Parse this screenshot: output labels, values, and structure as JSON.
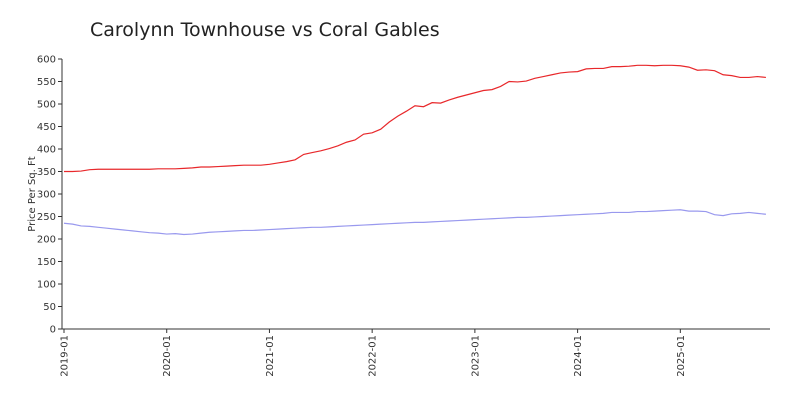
{
  "chart_data": {
    "type": "line",
    "title": "Carolynn Townhouse vs Coral Gables",
    "ylabel": "Price Per Sq. Ft",
    "x": [
      "2019-01",
      "2019-02",
      "2019-03",
      "2019-04",
      "2019-05",
      "2019-06",
      "2019-07",
      "2019-08",
      "2019-09",
      "2019-10",
      "2019-11",
      "2019-12",
      "2020-01",
      "2020-02",
      "2020-03",
      "2020-04",
      "2020-05",
      "2020-06",
      "2020-07",
      "2020-08",
      "2020-09",
      "2020-10",
      "2020-11",
      "2020-12",
      "2021-01",
      "2021-02",
      "2021-03",
      "2021-04",
      "2021-05",
      "2021-06",
      "2021-07",
      "2021-08",
      "2021-09",
      "2021-10",
      "2021-11",
      "2021-12",
      "2022-01",
      "2022-02",
      "2022-03",
      "2022-04",
      "2022-05",
      "2022-06",
      "2022-07",
      "2022-08",
      "2022-09",
      "2022-10",
      "2022-11",
      "2022-12",
      "2023-01",
      "2023-02",
      "2023-03",
      "2023-04",
      "2023-05",
      "2023-06",
      "2023-07",
      "2023-08",
      "2023-09",
      "2023-10",
      "2023-11",
      "2023-12",
      "2024-01",
      "2024-02",
      "2024-03",
      "2024-04",
      "2024-05",
      "2024-06",
      "2024-07",
      "2024-08",
      "2024-09",
      "2024-10",
      "2024-11",
      "2024-12",
      "2025-01",
      "2025-02",
      "2025-03",
      "2025-04",
      "2025-05",
      "2025-06",
      "2025-07",
      "2025-08",
      "2025-09",
      "2025-10",
      "2025-11"
    ],
    "series": [
      {
        "color": "#e8282b",
        "values": [
          350,
          350,
          351,
          354,
          355,
          355,
          355,
          355,
          355,
          355,
          355,
          356,
          356,
          356,
          357,
          358,
          360,
          360,
          361,
          362,
          363,
          364,
          364,
          364,
          366,
          369,
          372,
          376,
          388,
          392,
          396,
          401,
          407,
          415,
          420,
          433,
          436,
          444,
          460,
          473,
          484,
          496,
          494,
          503,
          502,
          509,
          515,
          520,
          525,
          530,
          532,
          539,
          550,
          549,
          551,
          557,
          561,
          565,
          569,
          571,
          572,
          578,
          579,
          579,
          583,
          583,
          584,
          586,
          586,
          585,
          586,
          586,
          585,
          582,
          575,
          576,
          574,
          565,
          563,
          559,
          559,
          561,
          559
        ]
      },
      {
        "color": "#9999ee",
        "values": [
          235,
          233,
          229,
          228,
          226,
          224,
          222,
          220,
          218,
          216,
          214,
          213,
          211,
          212,
          210,
          211,
          213,
          215,
          216,
          217,
          218,
          219,
          219,
          220,
          221,
          222,
          223,
          224,
          225,
          226,
          226,
          227,
          228,
          229,
          230,
          231,
          232,
          233,
          234,
          235,
          236,
          237,
          237,
          238,
          239,
          240,
          241,
          242,
          243,
          244,
          245,
          246,
          247,
          248,
          248,
          249,
          250,
          251,
          252,
          253,
          254,
          255,
          256,
          257,
          259,
          259,
          259,
          261,
          261,
          262,
          263,
          264,
          265,
          262,
          262,
          261,
          254,
          252,
          256,
          257,
          259,
          257,
          255
        ]
      }
    ],
    "xticks": [
      "2019-01",
      "2020-01",
      "2021-01",
      "2022-01",
      "2023-01",
      "2024-01",
      "2025-01"
    ],
    "ylim": [
      0,
      600
    ],
    "yticks": [
      0,
      50,
      100,
      150,
      200,
      250,
      300,
      350,
      400,
      450,
      500,
      550,
      600
    ]
  }
}
